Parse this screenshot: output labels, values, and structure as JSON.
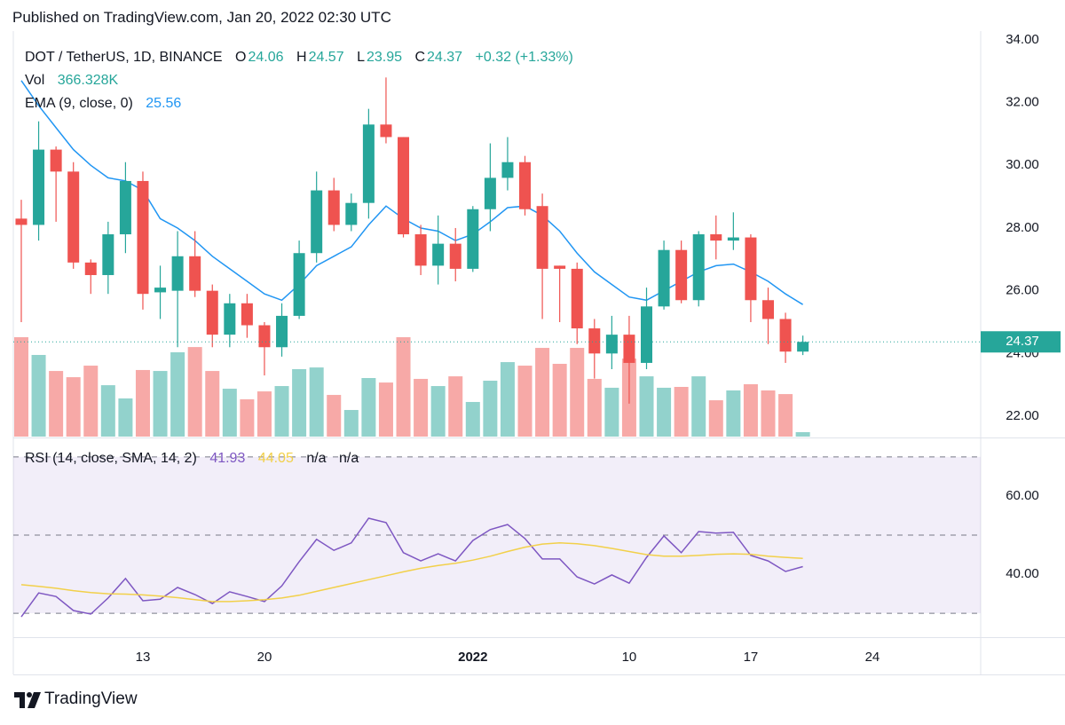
{
  "header": "Published on TradingView.com, Jan 20, 2022 02:30 UTC",
  "footer": "TradingView",
  "chart_data": [
    {
      "type": "candlestick",
      "title": "DOT / TetherUS, 1D, BINANCE",
      "ohlc_labels": [
        "O",
        "H",
        "L",
        "C"
      ],
      "change_label": "+0.32 (+1.33%)",
      "up_color": "#26a69a",
      "down_color": "#ef5350",
      "categories": [
        null,
        null,
        null,
        null,
        null,
        null,
        null,
        "13",
        null,
        null,
        null,
        null,
        null,
        null,
        "20",
        null,
        null,
        null,
        null,
        null,
        null,
        null,
        null,
        null,
        null,
        null,
        "2022",
        null,
        null,
        null,
        null,
        null,
        null,
        null,
        null,
        "10",
        null,
        null,
        null,
        null,
        null,
        null,
        "17",
        null,
        null,
        null,
        null,
        null,
        null,
        "24"
      ],
      "open": [
        28.3,
        28.1,
        30.5,
        29.8,
        26.9,
        26.5,
        27.8,
        29.5,
        25.95,
        26.0,
        27.1,
        26.0,
        24.6,
        25.6,
        24.9,
        24.2,
        25.2,
        27.2,
        29.2,
        28.1,
        28.8,
        31.3,
        30.9,
        27.8,
        26.8,
        27.5,
        26.7,
        28.6,
        29.6,
        30.1,
        28.7,
        26.8,
        26.7,
        24.8,
        24.0,
        24.6,
        23.7,
        25.5,
        27.3,
        25.7,
        27.8,
        27.6,
        27.7,
        25.7,
        25.1,
        24.06,
        null,
        null,
        null,
        null
      ],
      "high": [
        28.9,
        31.4,
        30.6,
        30.1,
        27.0,
        28.2,
        30.1,
        29.8,
        26.8,
        27.9,
        27.9,
        26.2,
        25.9,
        25.9,
        25.0,
        25.6,
        27.6,
        29.8,
        29.6,
        29.1,
        31.8,
        32.8,
        30.9,
        28.1,
        28.4,
        28.0,
        28.7,
        30.7,
        30.9,
        30.3,
        29.1,
        26.8,
        26.9,
        25.1,
        25.2,
        25.2,
        26.1,
        27.6,
        27.6,
        27.9,
        28.4,
        28.5,
        27.8,
        26.1,
        25.3,
        24.57,
        null,
        null,
        null,
        null
      ],
      "low": [
        25.0,
        27.6,
        28.2,
        26.7,
        25.9,
        25.9,
        27.2,
        25.4,
        25.1,
        24.2,
        25.8,
        24.2,
        24.2,
        24.5,
        23.3,
        23.9,
        25.1,
        26.9,
        27.9,
        27.9,
        28.3,
        30.7,
        27.7,
        26.5,
        26.2,
        26.3,
        26.6,
        27.9,
        29.2,
        28.4,
        25.1,
        25.0,
        24.3,
        23.2,
        23.5,
        22.4,
        23.5,
        25.4,
        25.6,
        25.5,
        27.0,
        27.3,
        25.0,
        24.3,
        23.7,
        23.95,
        null,
        null,
        null,
        null
      ],
      "close": [
        28.1,
        30.5,
        29.8,
        26.9,
        26.5,
        27.8,
        29.5,
        25.9,
        26.1,
        27.1,
        26.0,
        24.6,
        25.6,
        24.9,
        24.2,
        25.2,
        27.2,
        29.2,
        28.1,
        28.8,
        31.3,
        30.9,
        27.8,
        26.8,
        27.5,
        26.7,
        28.6,
        29.6,
        30.1,
        28.6,
        26.7,
        26.7,
        24.8,
        24.0,
        24.6,
        23.7,
        25.5,
        27.3,
        25.7,
        27.8,
        27.6,
        27.7,
        25.7,
        25.1,
        24.06,
        24.37,
        null,
        null,
        null,
        null
      ],
      "volume": {
        "name": "Vol",
        "values": [
          8180000,
          6720000,
          5400000,
          4890000,
          5840000,
          4230000,
          3140000,
          5480000,
          5400000,
          6940000,
          7370000,
          5400000,
          3940000,
          3070000,
          3720000,
          4160000,
          5550000,
          5690000,
          3430000,
          2190000,
          4820000,
          4450000,
          8180000,
          4750000,
          4160000,
          4960000,
          2850000,
          4600000,
          6130000,
          5840000,
          7300000,
          5990000,
          7300000,
          4750000,
          4020000,
          6420000,
          4960000,
          4020000,
          4090000,
          4960000,
          2990000,
          3800000,
          4310000,
          3800000,
          3500000,
          366328,
          null,
          null,
          null,
          null
        ],
        "value_labels": [
          null,
          null,
          null,
          null,
          null,
          null,
          null,
          null,
          null,
          null,
          null,
          null,
          null,
          null,
          null,
          null,
          null,
          null,
          null,
          null,
          null,
          null,
          null,
          null,
          null,
          null,
          null,
          null,
          null,
          null,
          null,
          null,
          null,
          null,
          null,
          null,
          null,
          null,
          null,
          null,
          null,
          null,
          null,
          null,
          null,
          "366.328K",
          null,
          null,
          null,
          null
        ]
      },
      "ema": {
        "name": "EMA (9, close, 0)",
        "color": "#2196f3",
        "values": [
          32.7,
          31.9,
          31.2,
          30.5,
          30.0,
          29.6,
          29.5,
          29.2,
          28.3,
          28.0,
          27.6,
          27.1,
          26.7,
          26.3,
          25.9,
          25.7,
          26.2,
          26.8,
          27.1,
          27.4,
          28.1,
          28.7,
          28.3,
          28.0,
          27.9,
          27.6,
          27.8,
          28.2,
          28.65,
          28.7,
          28.4,
          27.9,
          27.2,
          26.6,
          26.2,
          25.8,
          25.7,
          26.0,
          26.3,
          26.6,
          26.8,
          26.85,
          26.6,
          26.3,
          25.9,
          25.56,
          null,
          null,
          null,
          null
        ]
      },
      "ylim": [
        21.35,
        34.28
      ],
      "yticks": [
        {
          "value": 22,
          "label": "22.00"
        },
        {
          "value": 24,
          "label": "24.00"
        },
        {
          "value": 26,
          "label": "26.00"
        },
        {
          "value": 28,
          "label": "28.00"
        },
        {
          "value": 30,
          "label": "30.00"
        },
        {
          "value": 32,
          "label": "32.00"
        },
        {
          "value": 34,
          "label": "34.00"
        }
      ],
      "grid": false
    },
    {
      "type": "line",
      "title": "RSI (14, close, SMA, 14, 2)",
      "extra_values": [
        "n/a",
        "n/a"
      ],
      "series": [
        {
          "color": "#7e57c2",
          "values": [
            29.1,
            35.2,
            34.3,
            30.7,
            29.8,
            33.9,
            38.9,
            33.2,
            33.6,
            36.6,
            34.8,
            32.5,
            35.5,
            34.3,
            33.0,
            37.0,
            43.2,
            48.9,
            46.1,
            48.0,
            54.3,
            53.2,
            45.5,
            43.4,
            45.2,
            43.4,
            48.6,
            51.4,
            52.7,
            49.1,
            43.9,
            43.9,
            39.3,
            37.5,
            39.8,
            37.7,
            44.3,
            49.8,
            45.5,
            50.9,
            50.5,
            50.7,
            44.8,
            43.4,
            40.7,
            41.93,
            null,
            null,
            null,
            null
          ]
        },
        {
          "color": "#f2d04a",
          "values": [
            37.3,
            36.9,
            36.4,
            35.8,
            35.3,
            35.0,
            34.9,
            34.7,
            34.4,
            34.0,
            33.5,
            33.0,
            33.0,
            33.2,
            33.5,
            33.9,
            34.6,
            35.6,
            36.6,
            37.6,
            38.6,
            39.6,
            40.6,
            41.5,
            42.2,
            42.8,
            43.6,
            44.6,
            45.8,
            46.9,
            47.7,
            48.0,
            47.8,
            47.3,
            46.6,
            45.8,
            45.0,
            44.6,
            44.6,
            44.8,
            45.1,
            45.2,
            45.1,
            44.6,
            44.3,
            44.05,
            null,
            null,
            null,
            null
          ]
        }
      ],
      "levels": [
        70,
        50,
        30
      ],
      "band_color": "#7e57c2",
      "ylim": [
        23.9,
        74.5
      ],
      "yticks": [
        {
          "value": 40,
          "label": "40.00"
        },
        {
          "value": 60,
          "label": "60.00"
        }
      ],
      "grid": false
    }
  ]
}
